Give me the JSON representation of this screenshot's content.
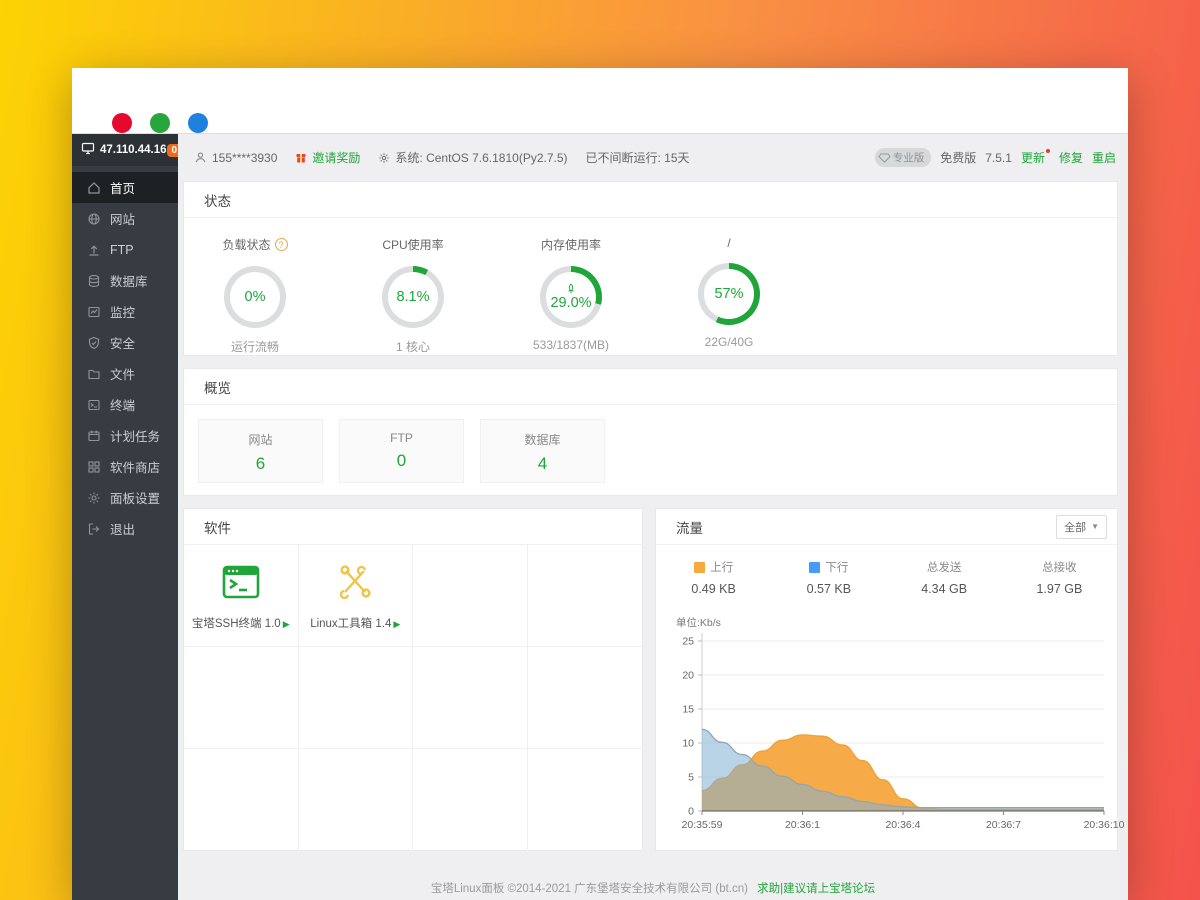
{
  "window": {
    "controls": [
      "close",
      "minimize",
      "maximize"
    ]
  },
  "sidebar": {
    "ip": "47.110.44.16",
    "badge": "0",
    "items": [
      {
        "label": "首页",
        "icon": "home-icon",
        "active": true
      },
      {
        "label": "网站",
        "icon": "globe-icon"
      },
      {
        "label": "FTP",
        "icon": "upload-icon"
      },
      {
        "label": "数据库",
        "icon": "database-icon"
      },
      {
        "label": "监控",
        "icon": "monitor-icon"
      },
      {
        "label": "安全",
        "icon": "shield-icon"
      },
      {
        "label": "文件",
        "icon": "folder-icon"
      },
      {
        "label": "终端",
        "icon": "terminal-icon"
      },
      {
        "label": "计划任务",
        "icon": "calendar-icon"
      },
      {
        "label": "软件商店",
        "icon": "store-icon"
      },
      {
        "label": "面板设置",
        "icon": "gear-icon"
      },
      {
        "label": "退出",
        "icon": "logout-icon"
      }
    ]
  },
  "toolbar": {
    "phone": "155****3930",
    "invite": "邀请奖励",
    "system": "系统:  CentOS 7.6.1810(Py2.7.5)",
    "uptime": "已不间断运行: 15天",
    "pro_badge": "专业版",
    "edition": "免费版",
    "version": "7.5.1",
    "update": "更新",
    "repair": "修复",
    "restart": "重启"
  },
  "status": {
    "title": "状态",
    "accent": "#20a53a",
    "gauges": [
      {
        "title": "负载状态",
        "percent": "0%",
        "value": 0,
        "sub": "运行流畅",
        "help": true
      },
      {
        "title": "CPU使用率",
        "percent": "8.1%",
        "value": 8.1,
        "sub": "1 核心"
      },
      {
        "title": "内存使用率",
        "percent": "29.0%",
        "value": 29,
        "sub": "533/1837(MB)",
        "rocket": true
      },
      {
        "title": "/",
        "percent": "57%",
        "value": 57,
        "sub": "22G/40G"
      }
    ]
  },
  "overview": {
    "title": "概览",
    "cards": [
      {
        "label": "网站",
        "value": "6"
      },
      {
        "label": "FTP",
        "value": "0"
      },
      {
        "label": "数据库",
        "value": "4"
      }
    ]
  },
  "software": {
    "title": "软件",
    "apps": [
      {
        "name": "宝塔SSH终端 1.0",
        "icon": "ssh-terminal-icon",
        "color": "#20a53a"
      },
      {
        "name": "Linux工具箱 1.4",
        "icon": "toolbox-icon",
        "color": "#efc445"
      }
    ]
  },
  "traffic": {
    "title": "流量",
    "filter": "全部",
    "stats": [
      {
        "label": "上行",
        "value": "0.49 KB",
        "color": "#f7a93d"
      },
      {
        "label": "下行",
        "value": "0.57 KB",
        "color": "#459df5"
      },
      {
        "label": "总发送",
        "value": "4.34 GB"
      },
      {
        "label": "总接收",
        "value": "1.97 GB"
      }
    ]
  },
  "chart_data": {
    "type": "area",
    "unit_label": "单位:Kb/s",
    "x_ticks": [
      "20:35:59",
      "20:36:1",
      "20:36:4",
      "20:36:7",
      "20:36:10"
    ],
    "y_ticks": [
      0,
      5,
      10,
      15,
      20,
      25
    ],
    "ylim": [
      0,
      25
    ],
    "grid": true,
    "legend_position": "top",
    "series": [
      {
        "name": "上行",
        "fill": "#f6a73e",
        "stroke": "#eea03a",
        "fill_opacity": 0.95,
        "x": [
          0,
          0.05,
          0.1,
          0.15,
          0.2,
          0.25,
          0.3,
          0.35,
          0.4,
          0.45,
          0.5,
          0.55,
          0.6,
          0.7,
          0.8,
          0.9,
          1
        ],
        "values": [
          3,
          4.8,
          6.8,
          8.8,
          10.4,
          11.2,
          11,
          9.7,
          7.4,
          4.6,
          1.8,
          0.4,
          0.25,
          0.25,
          0.25,
          0.25,
          0.25
        ]
      },
      {
        "name": "下行",
        "fill": "#7fb0d4",
        "stroke": "#93a6b0",
        "fill_opacity": 0.55,
        "x": [
          0,
          0.05,
          0.1,
          0.15,
          0.2,
          0.25,
          0.3,
          0.35,
          0.4,
          0.45,
          0.5,
          0.55,
          0.6,
          0.7,
          0.8,
          0.9,
          1
        ],
        "values": [
          12,
          10.1,
          8.3,
          6.6,
          5.1,
          3.9,
          2.9,
          2.1,
          1.4,
          0.9,
          0.6,
          0.5,
          0.5,
          0.5,
          0.5,
          0.5,
          0.5
        ]
      }
    ]
  },
  "footer": {
    "copyright": "宝塔Linux面板 ©2014-2021 广东堡塔安全技术有限公司 (bt.cn)",
    "link": "求助|建议请上宝塔论坛"
  }
}
